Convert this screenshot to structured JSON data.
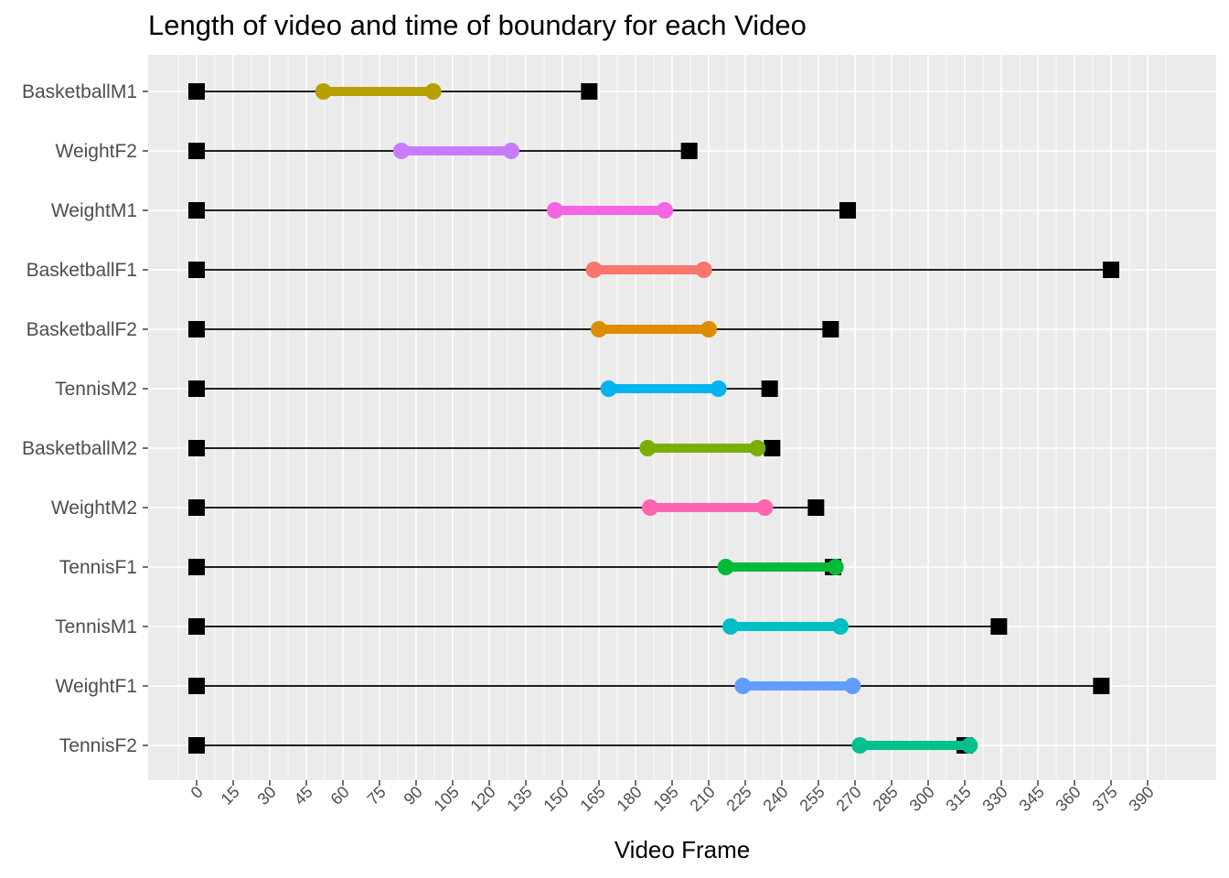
{
  "chart_data": {
    "type": "dumbbell",
    "title": "Length of video and time of boundary for each Video",
    "xlabel": "Video Frame",
    "ylabel": "",
    "xlim": [
      -20,
      417
    ],
    "x_ticks": [
      0,
      15,
      30,
      45,
      60,
      75,
      90,
      105,
      120,
      135,
      150,
      165,
      180,
      195,
      210,
      225,
      240,
      255,
      270,
      285,
      300,
      315,
      330,
      345,
      360,
      375,
      390
    ],
    "grid": true,
    "legend": "none",
    "categories": [
      "BasketballM1",
      "WeightF2",
      "WeightM1",
      "BasketballF1",
      "BasketballF2",
      "TennisM2",
      "BasketballM2",
      "WeightM2",
      "TennisF1",
      "TennisM1",
      "WeightF1",
      "TennisF2"
    ],
    "video_start": [
      0,
      0,
      0,
      0,
      0,
      0,
      0,
      0,
      0,
      0,
      0,
      0
    ],
    "video_end": [
      161,
      202,
      267,
      375,
      260,
      235,
      236,
      254,
      261,
      329,
      371,
      315
    ],
    "boundary_start": [
      52,
      84,
      147,
      163,
      165,
      169,
      185,
      186,
      217,
      219,
      224,
      272
    ],
    "boundary_end": [
      97,
      129,
      192,
      208,
      210,
      214,
      230,
      233,
      262,
      264,
      269,
      317
    ],
    "colors": [
      "#B79F00",
      "#C77CFF",
      "#F564E3",
      "#F8766D",
      "#DE8C00",
      "#00B4F0",
      "#7CAE00",
      "#FF64B0",
      "#00BA38",
      "#00BFC4",
      "#619CFF",
      "#00C08B"
    ],
    "panel_background": "#EBEBEB",
    "grid_color": "#FFFFFF",
    "marker_color": "#000000"
  }
}
